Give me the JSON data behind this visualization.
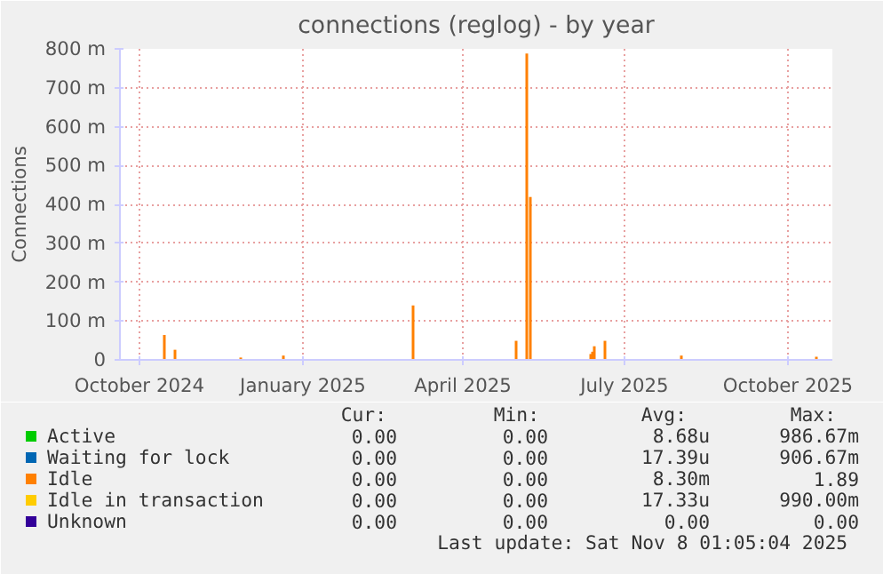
{
  "chart_data": {
    "type": "bar",
    "title": "connections (reglog) - by year",
    "ylabel": "Connections",
    "x": [
      "2024-10-15",
      "2024-10-21",
      "2024-11-27",
      "2024-12-21",
      "2025-03-04",
      "2025-05-01",
      "2025-05-07",
      "2025-05-09",
      "2025-06-12",
      "2025-06-13",
      "2025-06-14",
      "2025-06-20",
      "2025-08-02",
      "2025-10-17"
    ],
    "series": [
      {
        "name": "Active",
        "color": "#00cc00",
        "values": [
          0,
          0,
          0,
          0,
          0,
          0,
          0,
          0,
          0,
          0,
          0,
          0,
          0,
          0
        ]
      },
      {
        "name": "Waiting for lock",
        "color": "#0066b3",
        "values": [
          0,
          0,
          0,
          0,
          0,
          0,
          0,
          0,
          0,
          0,
          0,
          0,
          0,
          0
        ]
      },
      {
        "name": "Idle",
        "color": "#ff8000",
        "values": [
          64,
          26,
          6,
          11,
          140,
          49,
          788,
          419,
          15,
          21,
          35,
          49,
          11,
          8
        ]
      },
      {
        "name": "Idle in transaction",
        "color": "#ffcc00",
        "values": [
          0,
          0,
          0,
          0,
          0,
          0,
          0,
          0,
          0,
          0,
          0,
          0,
          0,
          0
        ]
      },
      {
        "name": "Unknown",
        "color": "#330099",
        "values": [
          0,
          0,
          0,
          0,
          0,
          0,
          0,
          0,
          0,
          0,
          0,
          0,
          0,
          0
        ]
      }
    ],
    "xlim": [
      "2024-09-20",
      "2025-10-26"
    ],
    "xticks": [
      {
        "value": "2024-10-01",
        "label": "October 2024"
      },
      {
        "value": "2025-01-01",
        "label": "January 2025"
      },
      {
        "value": "2025-04-01",
        "label": "April 2025"
      },
      {
        "value": "2025-07-01",
        "label": "July 2025"
      },
      {
        "value": "2025-10-01",
        "label": "October 2025"
      }
    ],
    "ylim": [
      0,
      800
    ],
    "yticks": [
      0,
      {
        "value": 100,
        "label": "100 m"
      },
      {
        "value": 200,
        "label": "200 m"
      },
      {
        "value": 300,
        "label": "300 m"
      },
      {
        "value": 400,
        "label": "400 m"
      },
      {
        "value": 500,
        "label": "500 m"
      },
      {
        "value": 600,
        "label": "600 m"
      },
      {
        "value": 700,
        "label": "700 m"
      },
      {
        "value": 800,
        "label": "800 m"
      }
    ],
    "grid": true,
    "legend": "bottom",
    "annotations": [
      "Cur:",
      "Min:",
      "Avg:",
      "Max:",
      "0.00",
      "0.00",
      "8.68u",
      "986.67m",
      "0.00",
      "0.00",
      "17.39u",
      "906.67m",
      "0.00",
      "0.00",
      "8.30m",
      "1.89",
      "0.00",
      "0.00",
      "17.33u",
      "990.00m",
      "0.00",
      "0.00",
      "0.00",
      "0.00",
      "Last update: Sat Nov  8 01:05:04 2025"
    ]
  }
}
